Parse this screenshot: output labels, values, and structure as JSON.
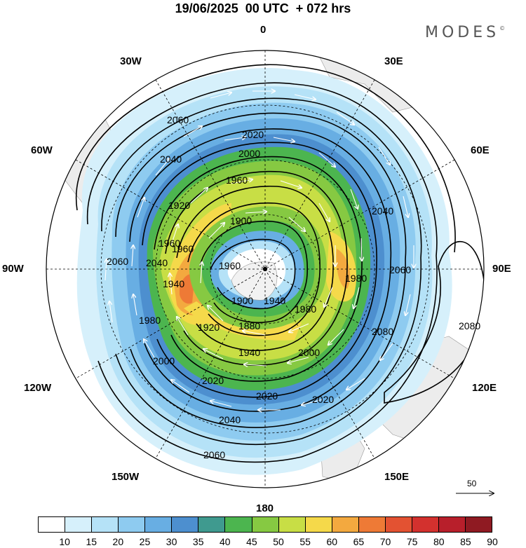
{
  "header": {
    "title": "19/06/2025  00 UTC  + 072 hrs",
    "brand": "MODES"
  },
  "map": {
    "projection": "south polar stereographic",
    "longitude_labels": {
      "top": "0",
      "top_right": "30E",
      "right_upper": "60E",
      "right": "90E",
      "right_lower": "120E",
      "bottom_right": "150E",
      "bottom": "180",
      "bottom_left": "150W",
      "left_lower": "120W",
      "left": "90W",
      "left_upper": "60W",
      "top_left": "30W"
    },
    "contour_labels": [
      "2060",
      "2040",
      "2020",
      "2000",
      "1980",
      "1960",
      "1940",
      "1920",
      "1900",
      "1880",
      "1960",
      "1980",
      "2000",
      "2020",
      "2040",
      "2060",
      "2080",
      "2080",
      "2060",
      "2040",
      "2020",
      "2000",
      "1980",
      "1960",
      "1940",
      "1920",
      "1900",
      "2060",
      "2040",
      "2020",
      "1960",
      "1940"
    ],
    "vector_reference": "50"
  },
  "colorbar": {
    "ticks": [
      "10",
      "15",
      "20",
      "25",
      "30",
      "35",
      "40",
      "45",
      "50",
      "55",
      "60",
      "65",
      "70",
      "75",
      "80",
      "85",
      "90"
    ],
    "colors": [
      "#ffffff",
      "#d6f0fb",
      "#b5e2f7",
      "#8ecbf0",
      "#68aee3",
      "#4d8fcf",
      "#3f9a8f",
      "#4cb54f",
      "#86c942",
      "#c8de45",
      "#f5d94a",
      "#f3a93f",
      "#ee7a36",
      "#e35232",
      "#d3312e",
      "#b81f2b",
      "#8f1a22"
    ]
  }
}
